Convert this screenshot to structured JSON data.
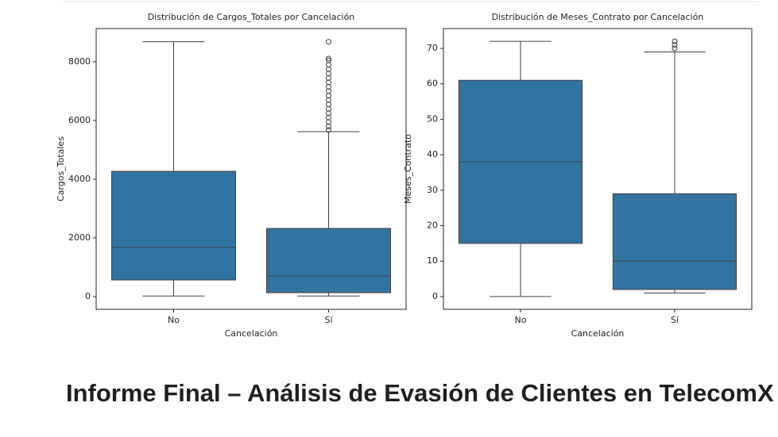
{
  "chart_data": [
    {
      "type": "box",
      "title": "Distribución de Cargos_Totales por Cancelación",
      "x_label": "Cancelación",
      "y_label": "Cargos_Totales",
      "categories": [
        "No",
        "Sí"
      ],
      "color": "#3274a1",
      "boxes": [
        {
          "min": 19,
          "q1": 568,
          "median": 1676,
          "q3": 4270,
          "max": 8685,
          "outliers": []
        },
        {
          "min": 19,
          "q1": 135,
          "median": 703,
          "q3": 2324,
          "max": 5622,
          "outliers": [
            5680,
            5800,
            5950,
            6100,
            6250,
            6400,
            6550,
            6700,
            6850,
            7000,
            7150,
            7300,
            7450,
            7600,
            7750,
            7900,
            8050,
            8110,
            8685
          ]
        }
      ],
      "ylim": [
        -432,
        9135
      ],
      "yticks": [
        0,
        2000,
        4000,
        6000,
        8000
      ]
    },
    {
      "type": "box",
      "title": "Distribución de Meses_Contrato por Cancelación",
      "x_label": "Cancelación",
      "y_label": "Meses_Contrato",
      "categories": [
        "No",
        "Sí"
      ],
      "color": "#3274a1",
      "boxes": [
        {
          "min": 0,
          "q1": 15,
          "median": 38,
          "q3": 61,
          "max": 72,
          "outliers": []
        },
        {
          "min": 1,
          "q1": 2,
          "median": 10,
          "q3": 29,
          "max": 69,
          "outliers": [
            70,
            71,
            72
          ]
        }
      ],
      "ylim": [
        -3.6,
        75.6
      ],
      "yticks": [
        0,
        10,
        20,
        30,
        40,
        50,
        60,
        70
      ]
    }
  ],
  "heading": "Informe Final – Análisis de Evasión de Clientes en TelecomX"
}
